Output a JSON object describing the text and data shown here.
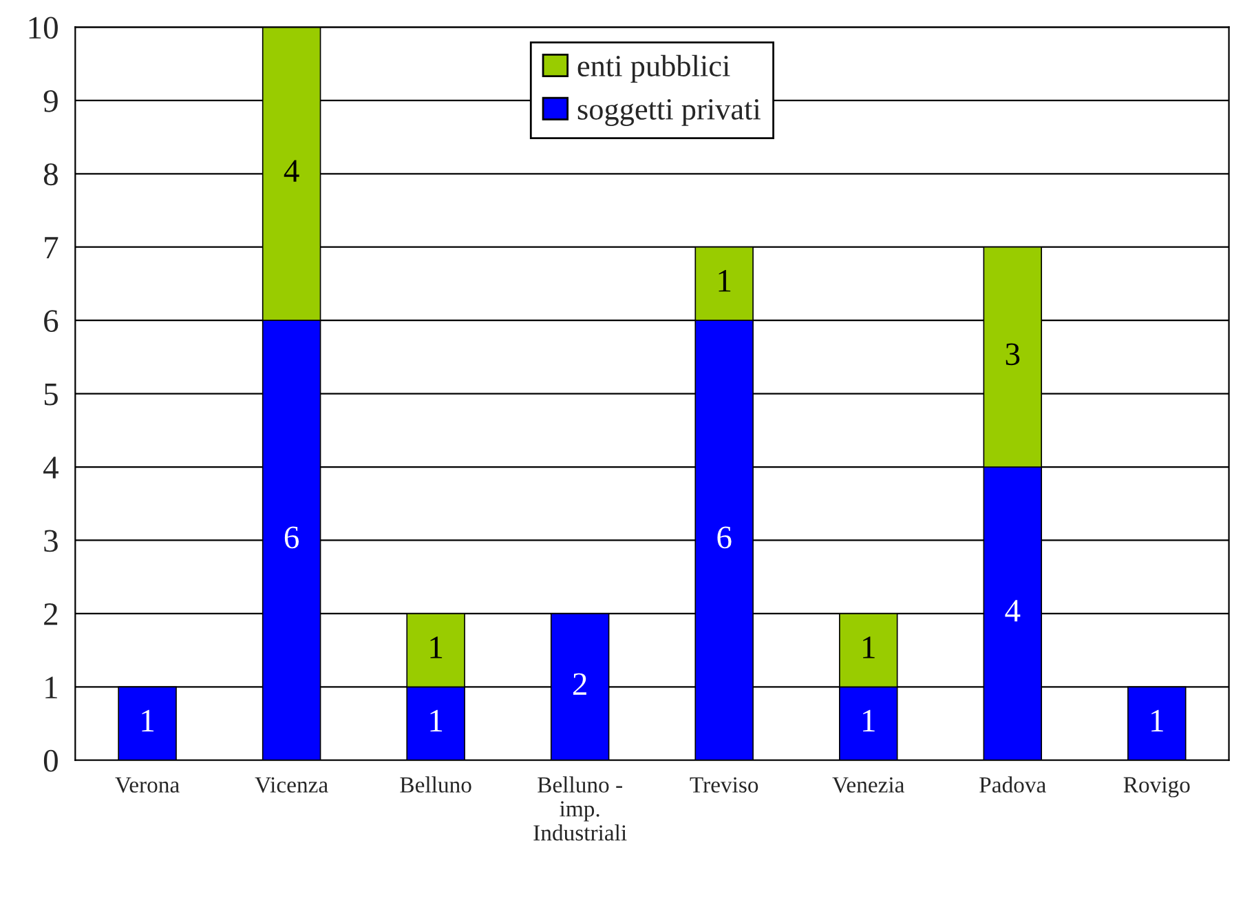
{
  "chart_data": {
    "type": "bar",
    "stacked": true,
    "categories": [
      "Verona",
      "Vicenza",
      "Belluno",
      "Belluno -\nimp.\nIndustriali",
      "Treviso",
      "Venezia",
      "Padova",
      "Rovigo"
    ],
    "series": [
      {
        "name": "soggetti privati",
        "color": "#0000ff",
        "values": [
          1,
          6,
          1,
          2,
          6,
          1,
          4,
          1
        ]
      },
      {
        "name": "enti pubblici",
        "color": "#99cc00",
        "values": [
          null,
          4,
          1,
          null,
          1,
          1,
          3,
          null
        ]
      }
    ],
    "ylim": [
      0,
      10
    ],
    "yticks": [
      0,
      1,
      2,
      3,
      4,
      5,
      6,
      7,
      8,
      9,
      10
    ],
    "grid": "y",
    "legend": "top",
    "data_labels": true
  }
}
